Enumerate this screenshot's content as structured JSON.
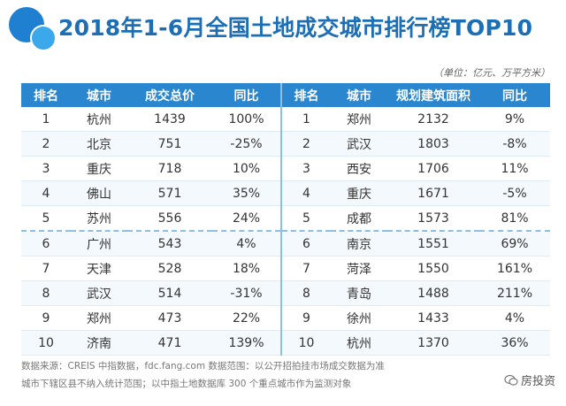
{
  "title": "2018年1-6月全国土地成交城市排行榜TOP10",
  "unit": "（单位：亿元、万平方米）",
  "headers_left": [
    "排名",
    "城市",
    "成交总价",
    "同比"
  ],
  "headers_right": [
    "排名",
    "城市",
    "规划建筑面积",
    "同比"
  ],
  "rows_left": [
    [
      "1",
      "杭州",
      "1439",
      "100%"
    ],
    [
      "2",
      "北京",
      "751",
      "-25%"
    ],
    [
      "3",
      "重庆",
      "718",
      "10%"
    ],
    [
      "4",
      "佛山",
      "571",
      "35%"
    ],
    [
      "5",
      "苏州",
      "556",
      "24%"
    ],
    [
      "6",
      "广州",
      "543",
      "4%"
    ],
    [
      "7",
      "天津",
      "528",
      "18%"
    ],
    [
      "8",
      "武汉",
      "514",
      "-31%"
    ],
    [
      "9",
      "郑州",
      "473",
      "22%"
    ],
    [
      "10",
      "济南",
      "471",
      "139%"
    ]
  ],
  "rows_right": [
    [
      "1",
      "郑州",
      "2132",
      "9%"
    ],
    [
      "2",
      "武汉",
      "1803",
      "-8%"
    ],
    [
      "3",
      "西安",
      "1706",
      "11%"
    ],
    [
      "4",
      "重庆",
      "1671",
      "-5%"
    ],
    [
      "5",
      "成都",
      "1573",
      "81%"
    ],
    [
      "6",
      "南京",
      "1551",
      "69%"
    ],
    [
      "7",
      "菏泽",
      "1550",
      "161%"
    ],
    [
      "8",
      "青岛",
      "1488",
      "211%"
    ],
    [
      "9",
      "徐州",
      "1433",
      "4%"
    ],
    [
      "10",
      "杭州",
      "1370",
      "36%"
    ]
  ],
  "footer": {
    "line1": "数据来源：CREIS 中指数据，fdc.fang.com 数据范围：以公开招拍挂市场成交数据为准",
    "line2": "城市下辖区县不纳入统计范围；以中指土地数据库 300 个重点城市作为监测对象"
  },
  "brand": "房投资",
  "colors": {
    "accent": "#2a87cf",
    "title": "#1c6fb5"
  }
}
